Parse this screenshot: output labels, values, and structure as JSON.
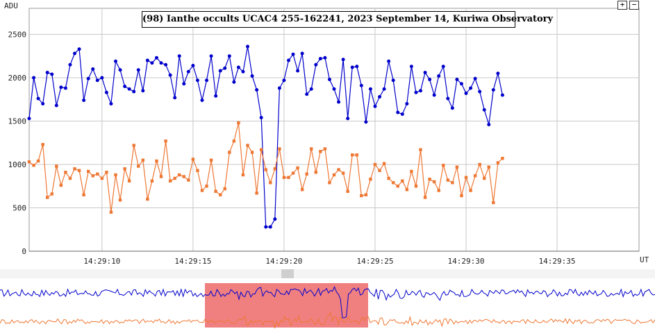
{
  "chart_data": {
    "type": "line",
    "title": "(98) Ianthe occults UCAC4 255-162241, 2023 September 14, Kuriwa Observatory",
    "ylabel": "ADU",
    "xlabel": "UT",
    "ylim": [
      0,
      2800
    ],
    "xlim_seconds_after_14_29": [
      6.0,
      39.5
    ],
    "yticks": [
      0,
      500,
      1000,
      1500,
      2000,
      2500
    ],
    "xticks": [
      "14:29:10",
      "14:29:15",
      "14:29:20",
      "14:29:25",
      "14:29:30",
      "14:29:35"
    ],
    "grid": true,
    "sample_interval_s": 0.25,
    "series": [
      {
        "color": "#0000cc",
        "values": [
          1530,
          2000,
          1760,
          1700,
          2060,
          2040,
          1680,
          1890,
          1880,
          2150,
          2280,
          2330,
          1740,
          1990,
          2100,
          1970,
          2000,
          1830,
          1700,
          2190,
          2090,
          1900,
          1870,
          1840,
          2090,
          1850,
          2200,
          2170,
          2230,
          2170,
          2150,
          2030,
          1770,
          2250,
          1930,
          2070,
          2140,
          1970,
          1740,
          1970,
          2250,
          1790,
          2080,
          2110,
          2250,
          1950,
          2120,
          2070,
          2360,
          2020,
          1860,
          1540,
          280,
          280,
          370,
          1880,
          1970,
          2200,
          2270,
          2080,
          2280,
          1810,
          1870,
          2150,
          2220,
          2230,
          1980,
          1870,
          1720,
          2210,
          1530,
          2120,
          2130,
          1910,
          1490,
          1870,
          1670,
          1780,
          1870,
          2190,
          1970,
          1600,
          1580,
          1700,
          2130,
          1830,
          1850,
          2060,
          1980,
          1800,
          2020,
          2130,
          1760,
          1650,
          1980,
          1930,
          1820,
          1880,
          1990,
          1840,
          1630,
          1460,
          1860,
          2050,
          1800
        ]
      },
      {
        "color": "#ee7733",
        "values": [
          1030,
          990,
          1040,
          1230,
          620,
          660,
          980,
          760,
          910,
          840,
          950,
          930,
          650,
          920,
          870,
          890,
          840,
          910,
          450,
          880,
          590,
          950,
          810,
          1220,
          980,
          1050,
          600,
          810,
          1040,
          860,
          1270,
          810,
          840,
          880,
          860,
          820,
          1060,
          930,
          700,
          750,
          1050,
          690,
          650,
          720,
          1140,
          1270,
          1480,
          880,
          1220,
          1140,
          670,
          1170,
          940,
          790,
          950,
          1180,
          850,
          850,
          900,
          960,
          710,
          890,
          1180,
          910,
          1150,
          1180,
          790,
          880,
          940,
          900,
          690,
          1110,
          1110,
          640,
          650,
          830,
          1000,
          930,
          1010,
          840,
          790,
          750,
          810,
          710,
          920,
          750,
          1170,
          620,
          830,
          800,
          700,
          990,
          820,
          790,
          970,
          640,
          850,
          700,
          870,
          1000,
          840,
          970,
          560,
          1020,
          1070
        ]
      }
    ]
  },
  "zoom": {
    "in_label": "+",
    "out_label": "−"
  },
  "overview": {
    "highlight_color": "#f08080"
  }
}
